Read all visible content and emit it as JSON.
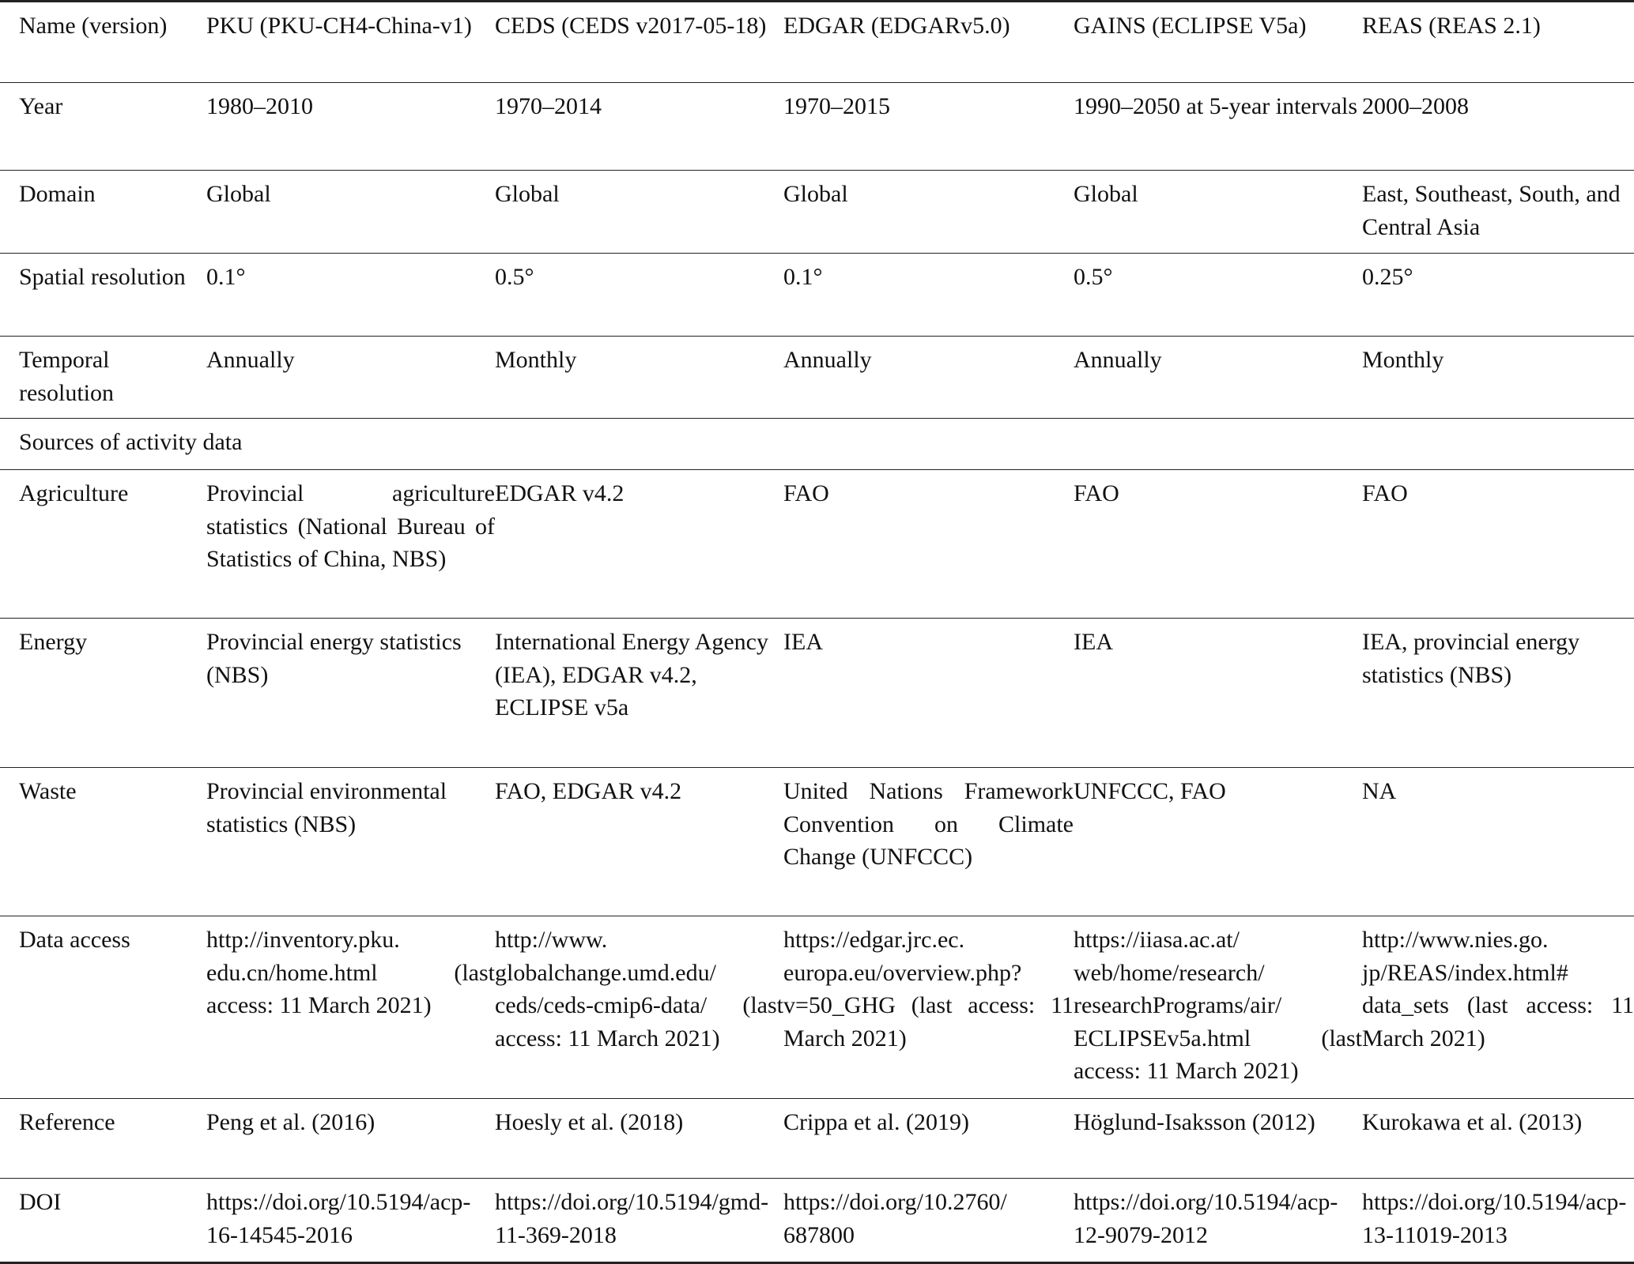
{
  "table": {
    "header": [
      "Name (version)",
      "PKU (PKU-CH4-China-v1)",
      "CEDS (CEDS v2017-05-18)",
      "EDGAR (EDGARv5.0)",
      "GAINS (ECLIPSE V5a)",
      "REAS (REAS 2.1)"
    ],
    "rows": [
      [
        "Year",
        "1980–2010",
        "1970–2014",
        "1970–2015",
        "1990–2050 at 5-year intervals",
        "2000–2008"
      ],
      [
        "Domain",
        "Global",
        "Global",
        "Global",
        "Global",
        "East, Southeast, South, and Central Asia"
      ],
      [
        "Spatial resolution",
        "0.1°",
        "0.5°",
        "0.1°",
        "0.5°",
        "0.25°"
      ],
      [
        "Temporal resolution",
        "Annually",
        "Monthly",
        "Annually",
        "Annually",
        "Monthly"
      ],
      [
        "Sources of activity data"
      ],
      [
        "Agriculture",
        "Provincial agriculture statistics (National Bureau of Statistics of China, NBS)",
        "EDGAR v4.2",
        "FAO",
        "FAO",
        "FAO"
      ],
      [
        "Energy",
        "Provincial energy statistics (NBS)",
        "International Energy Agency (IEA), EDGAR v4.2, ECLIPSE v5a",
        "IEA",
        "IEA",
        "IEA, provincial energy statistics (NBS)"
      ],
      [
        "Waste",
        "Provincial environmen­tal statistics (NBS)",
        "FAO, EDGAR v4.2",
        "United Nations Frame­work Convention on Climate Change (UNFCCC)",
        "UNFCCC, FAO",
        "NA"
      ],
      [
        "Data access",
        "http://inventory.pku.​edu.cn/home.html (last access: 11 March 2021)",
        "http://www.​globalchange.umd.edu/​ceds/ceds-cmip6-data/ (last access: 11 March 2021)",
        "https://edgar.jrc.ec.​europa.eu/overview.​php?v=50_GHG (last access: 11 March 2021)",
        "https://iiasa.ac.at/​web/home/research/​researchPrograms/air/​ECLIPSEv5a.html (last access: 11 March 2021)",
        "http://www.nies.go.​jp/REAS/index.html#​data_sets (last access: 11 March 2021)"
      ],
      [
        "Reference",
        "Peng et al. (2016)",
        "Hoesly et al. (2018)",
        "Crippa et al. (2019)",
        "Höglund-Isaksson (2012)",
        "Kurokawa et al. (2013)"
      ],
      [
        "DOI",
        "https://doi.org/10.5194/​acp-16-14545-2016",
        "https://doi.org/10.5194/​gmd-11-369-2018",
        "https://doi.org/10.2760/​687800",
        "https://doi.org/10.5194/​acp-12-9079-2012",
        "https://doi.org/10.5194/​acp-13-11019-2013"
      ]
    ]
  }
}
